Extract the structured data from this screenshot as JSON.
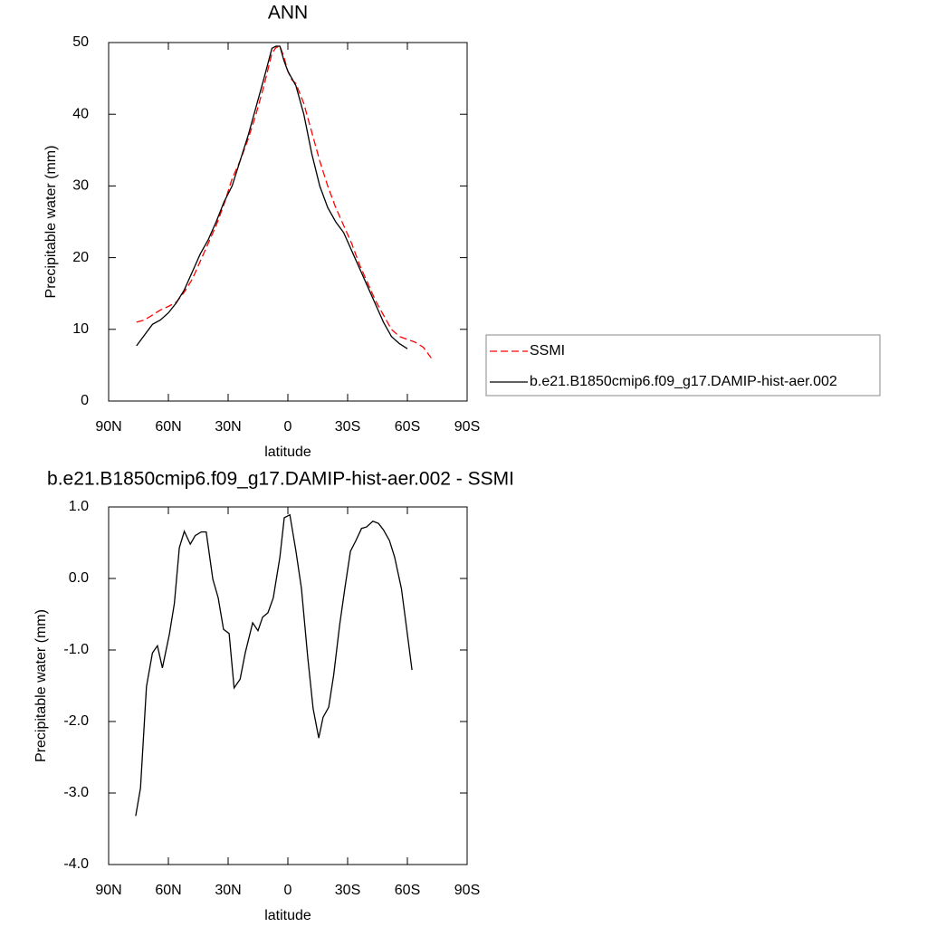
{
  "chart_data": [
    {
      "type": "line",
      "title": "ANN",
      "xlabel": "latitude",
      "ylabel": "Precipitable water (mm)",
      "xlim": [
        90,
        -90
      ],
      "xticks": [
        {
          "value": 90,
          "label": "90N"
        },
        {
          "value": 60,
          "label": "60N"
        },
        {
          "value": 30,
          "label": "30N"
        },
        0,
        {
          "value": -30,
          "label": "30S"
        },
        {
          "value": -60,
          "label": "60S"
        },
        {
          "value": -90,
          "label": "90S"
        }
      ],
      "ylim": [
        0,
        50
      ],
      "yticks": [
        0,
        10,
        20,
        30,
        40,
        50
      ],
      "legend": "right",
      "series": [
        {
          "name": "SSMI",
          "color": "#ff0000",
          "line_style": "dashed",
          "x": [
            76,
            72,
            68,
            64,
            60,
            56,
            52,
            48,
            44,
            40,
            36,
            32,
            28,
            24,
            20,
            16,
            12,
            8,
            6,
            4,
            2,
            0,
            -2,
            -4,
            -8,
            -12,
            -16,
            -20,
            -24,
            -28,
            -32,
            -36,
            -40,
            -44,
            -48,
            -52,
            -56,
            -60,
            -64,
            -68,
            -72
          ],
          "values": [
            11,
            11.3,
            12,
            12.7,
            13.2,
            13.8,
            15.2,
            17,
            19.5,
            22,
            24.5,
            27.5,
            31,
            33.5,
            36.5,
            40,
            44,
            48.5,
            49.3,
            49.5,
            48,
            46,
            44.8,
            44.3,
            41.5,
            37.5,
            33.5,
            30,
            27,
            24.5,
            22,
            19,
            16.5,
            14,
            12,
            10,
            9,
            8.6,
            8.2,
            7.5,
            6
          ]
        },
        {
          "name": "b.e21.B1850cmip6.f09_g17.DAMIP-hist-aer.002",
          "color": "#000000",
          "line_style": "solid",
          "x": [
            76,
            72,
            68,
            64,
            60,
            56,
            52,
            48,
            44,
            40,
            36,
            32,
            28,
            24,
            20,
            16,
            12,
            8,
            6,
            4,
            2,
            0,
            -2,
            -4,
            -8,
            -12,
            -16,
            -20,
            -24,
            -28,
            -32,
            -36,
            -40,
            -44,
            -48,
            -52,
            -56,
            -60
          ],
          "values": [
            7.7,
            9.2,
            10.7,
            11.3,
            12.3,
            13.7,
            15.5,
            18,
            20.5,
            22.5,
            25,
            27.8,
            30,
            33.5,
            37,
            41,
            45,
            49.2,
            49.5,
            49.5,
            47.5,
            46,
            45,
            44,
            40,
            34.5,
            30,
            27,
            25,
            23.5,
            21,
            18.5,
            16,
            13.5,
            11,
            9,
            8,
            7.3
          ]
        }
      ]
    },
    {
      "type": "line",
      "title": "b.e21.B1850cmip6.f09_g17.DAMIP-hist-aer.002 - SSMI",
      "xlabel": "latitude",
      "ylabel": "Precipitable water (mm)",
      "xlim": [
        90,
        -90
      ],
      "xticks": [
        {
          "value": 90,
          "label": "90N"
        },
        {
          "value": 60,
          "label": "60N"
        },
        {
          "value": 30,
          "label": "30N"
        },
        0,
        {
          "value": -30,
          "label": "30S"
        },
        {
          "value": -60,
          "label": "60S"
        },
        {
          "value": -90,
          "label": "90S"
        }
      ],
      "ylim": [
        -4,
        1
      ],
      "yticks": [
        {
          "value": -4,
          "label": "-4.0"
        },
        {
          "value": -3,
          "label": "-3.0"
        },
        {
          "value": -2,
          "label": "-2.0"
        },
        {
          "value": -1,
          "label": "-1.0"
        },
        {
          "value": 0,
          "label": "0.0"
        },
        {
          "value": 1,
          "label": "1.0"
        }
      ],
      "series": [
        {
          "color": "#000000",
          "line_style": "solid",
          "x": [
            76.4,
            74,
            71,
            68,
            65.5,
            63,
            59.5,
            57,
            54.5,
            52,
            49,
            46.5,
            43.5,
            41,
            37.7,
            35,
            32.3,
            29.5,
            27,
            24,
            21.4,
            17.7,
            15,
            12.7,
            10,
            7.3,
            4,
            1.8,
            -1,
            -4,
            -6.8,
            -10,
            -12.7,
            -15.5,
            -17.7,
            -20.5,
            -23,
            -26,
            -28.6,
            -31.4,
            -34,
            -37,
            -39.5,
            -42.7,
            -45.5,
            -48,
            -51,
            -53.6,
            -57,
            -59.5,
            -62.3
          ],
          "values": [
            -3.32,
            -2.93,
            -1.51,
            -1.04,
            -0.94,
            -1.25,
            -0.78,
            -0.35,
            0.43,
            0.66,
            0.48,
            0.6,
            0.65,
            0.65,
            -0.01,
            -0.27,
            -0.71,
            -0.77,
            -1.53,
            -1.41,
            -1.04,
            -0.62,
            -0.73,
            -0.54,
            -0.48,
            -0.27,
            0.3,
            0.85,
            0.89,
            0.39,
            -0.14,
            -1.11,
            -1.82,
            -2.23,
            -1.94,
            -1.8,
            -1.35,
            -0.65,
            -0.14,
            0.38,
            0.52,
            0.7,
            0.72,
            0.8,
            0.77,
            0.68,
            0.53,
            0.3,
            -0.14,
            -0.67,
            -1.28
          ]
        }
      ]
    }
  ]
}
